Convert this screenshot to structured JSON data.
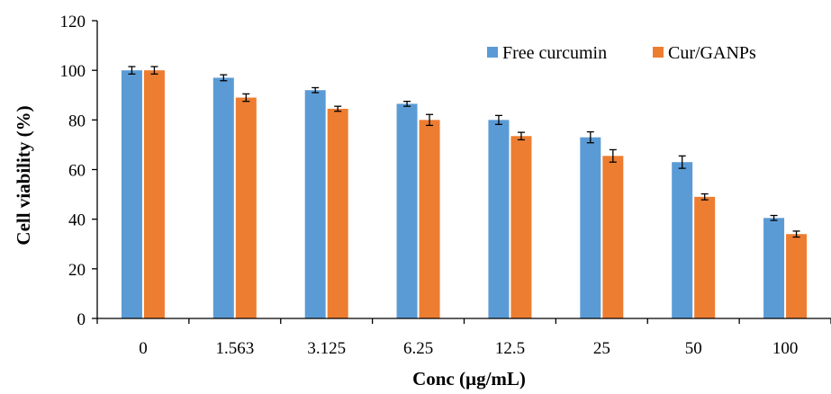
{
  "chart_data": {
    "type": "bar",
    "xlabel": "Conc (µg/mL)",
    "ylabel": "Cell viability (%)",
    "categories": [
      "0",
      "1.563",
      "3.125",
      "6.25",
      "12.5",
      "25",
      "50",
      "100"
    ],
    "ylim": [
      0,
      120
    ],
    "yticks": [
      0,
      20,
      40,
      60,
      80,
      100,
      120
    ],
    "legend_position": "top-right",
    "series": [
      {
        "name": "Free curcumin",
        "color": "#5B9BD5",
        "values": [
          100,
          97,
          92,
          86.5,
          80,
          73,
          63,
          40.5
        ],
        "errors": [
          1.5,
          1.2,
          1.0,
          1.0,
          1.8,
          2.2,
          2.5,
          1.0
        ]
      },
      {
        "name": "Cur/GANPs",
        "color": "#ED7D31",
        "values": [
          100,
          89,
          84.5,
          80,
          73.5,
          65.5,
          49,
          34
        ],
        "errors": [
          1.5,
          1.5,
          1.0,
          2.2,
          1.5,
          2.5,
          1.2,
          1.2
        ]
      }
    ]
  }
}
